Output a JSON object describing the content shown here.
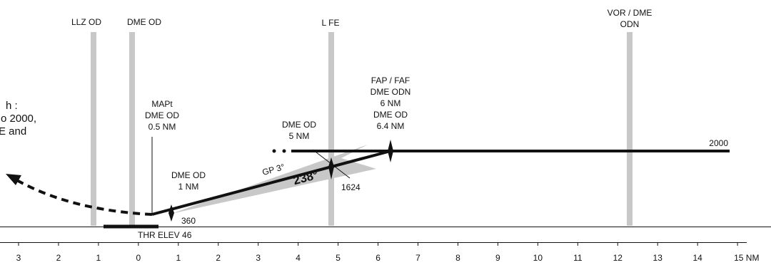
{
  "colors": {
    "ink": "#111111",
    "fix_bar": "#c8c8c8",
    "gp_wedge": "#c8c8c8"
  },
  "fix_columns": [
    {
      "name": "LLZ OD",
      "lines": [
        "LLZ OD"
      ],
      "dist_nm": 1.1
    },
    {
      "name": "DME OD",
      "lines": [
        "DME OD"
      ],
      "dist_nm": 0.15
    },
    {
      "name": "L FE",
      "lines": [
        "L FE"
      ],
      "dist_nm": 4.82
    },
    {
      "name": "VOR / DME ODN",
      "lines": [
        "VOR / DME",
        "ODN"
      ],
      "dist_nm": 12.28
    }
  ],
  "missed_approach_text": [
    "h :",
    "o 2000,",
    "E and"
  ],
  "mapt_label": [
    "MAPt",
    "DME OD",
    "0.5 NM"
  ],
  "dme_1nm_label": [
    "DME OD",
    "1 NM"
  ],
  "dme_5nm_label": [
    "DME OD",
    "5 NM"
  ],
  "faf_label": [
    "FAP / FAF",
    "DME ODN",
    "6 NM",
    "DME OD",
    "6.4 NM"
  ],
  "altitudes": {
    "intermediate": "2000",
    "at_5nm": "1624",
    "at_1nm": "360"
  },
  "gp_label": "GP 3°",
  "bearing_label": "238°",
  "threshold_label": "THR ELEV 46",
  "axis": {
    "unit": "NM",
    "ticks": [
      "3",
      "2",
      "1",
      "0",
      "1",
      "2",
      "3",
      "4",
      "5",
      "6",
      "7",
      "8",
      "9",
      "10",
      "11",
      "12",
      "13",
      "14",
      "15 NM"
    ]
  }
}
